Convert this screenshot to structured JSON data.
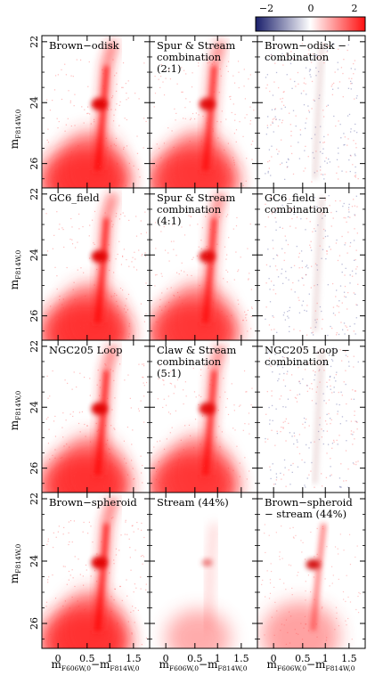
{
  "colorbar": {
    "ticks": [
      "−2",
      "0",
      "2"
    ],
    "colors": {
      "negative": "#1a1f6b",
      "zero": "#ffffff",
      "positive": "#ff1010"
    }
  },
  "panels": [
    [
      "Brown−odisk",
      "Spur & Stream\ncombination\n(2:1)",
      "Brown−odisk −\ncombination"
    ],
    [
      "GC6_field",
      "Spur & Stream\ncombination\n(4:1)",
      "GC6_field −\ncombination"
    ],
    [
      "NGC205 Loop",
      "Claw & Stream\ncombination\n(5:1)",
      "NGC205 Loop −\ncombination"
    ],
    [
      "Brown−spheroid",
      "Stream (44%)",
      "Brown−spheroid\n− stream (44%)"
    ]
  ],
  "axes": {
    "y_label_main": "m",
    "y_label_sub": "F814W,0",
    "x_label_main_1": "m",
    "x_label_sub_1": "F606W,0",
    "x_label_sep": "−m",
    "x_label_sub_2": "F814W,0",
    "y_ticks": [
      "22",
      "24",
      "26"
    ],
    "x_ticks": [
      "0",
      "0.5",
      "1",
      "1.5"
    ]
  }
}
